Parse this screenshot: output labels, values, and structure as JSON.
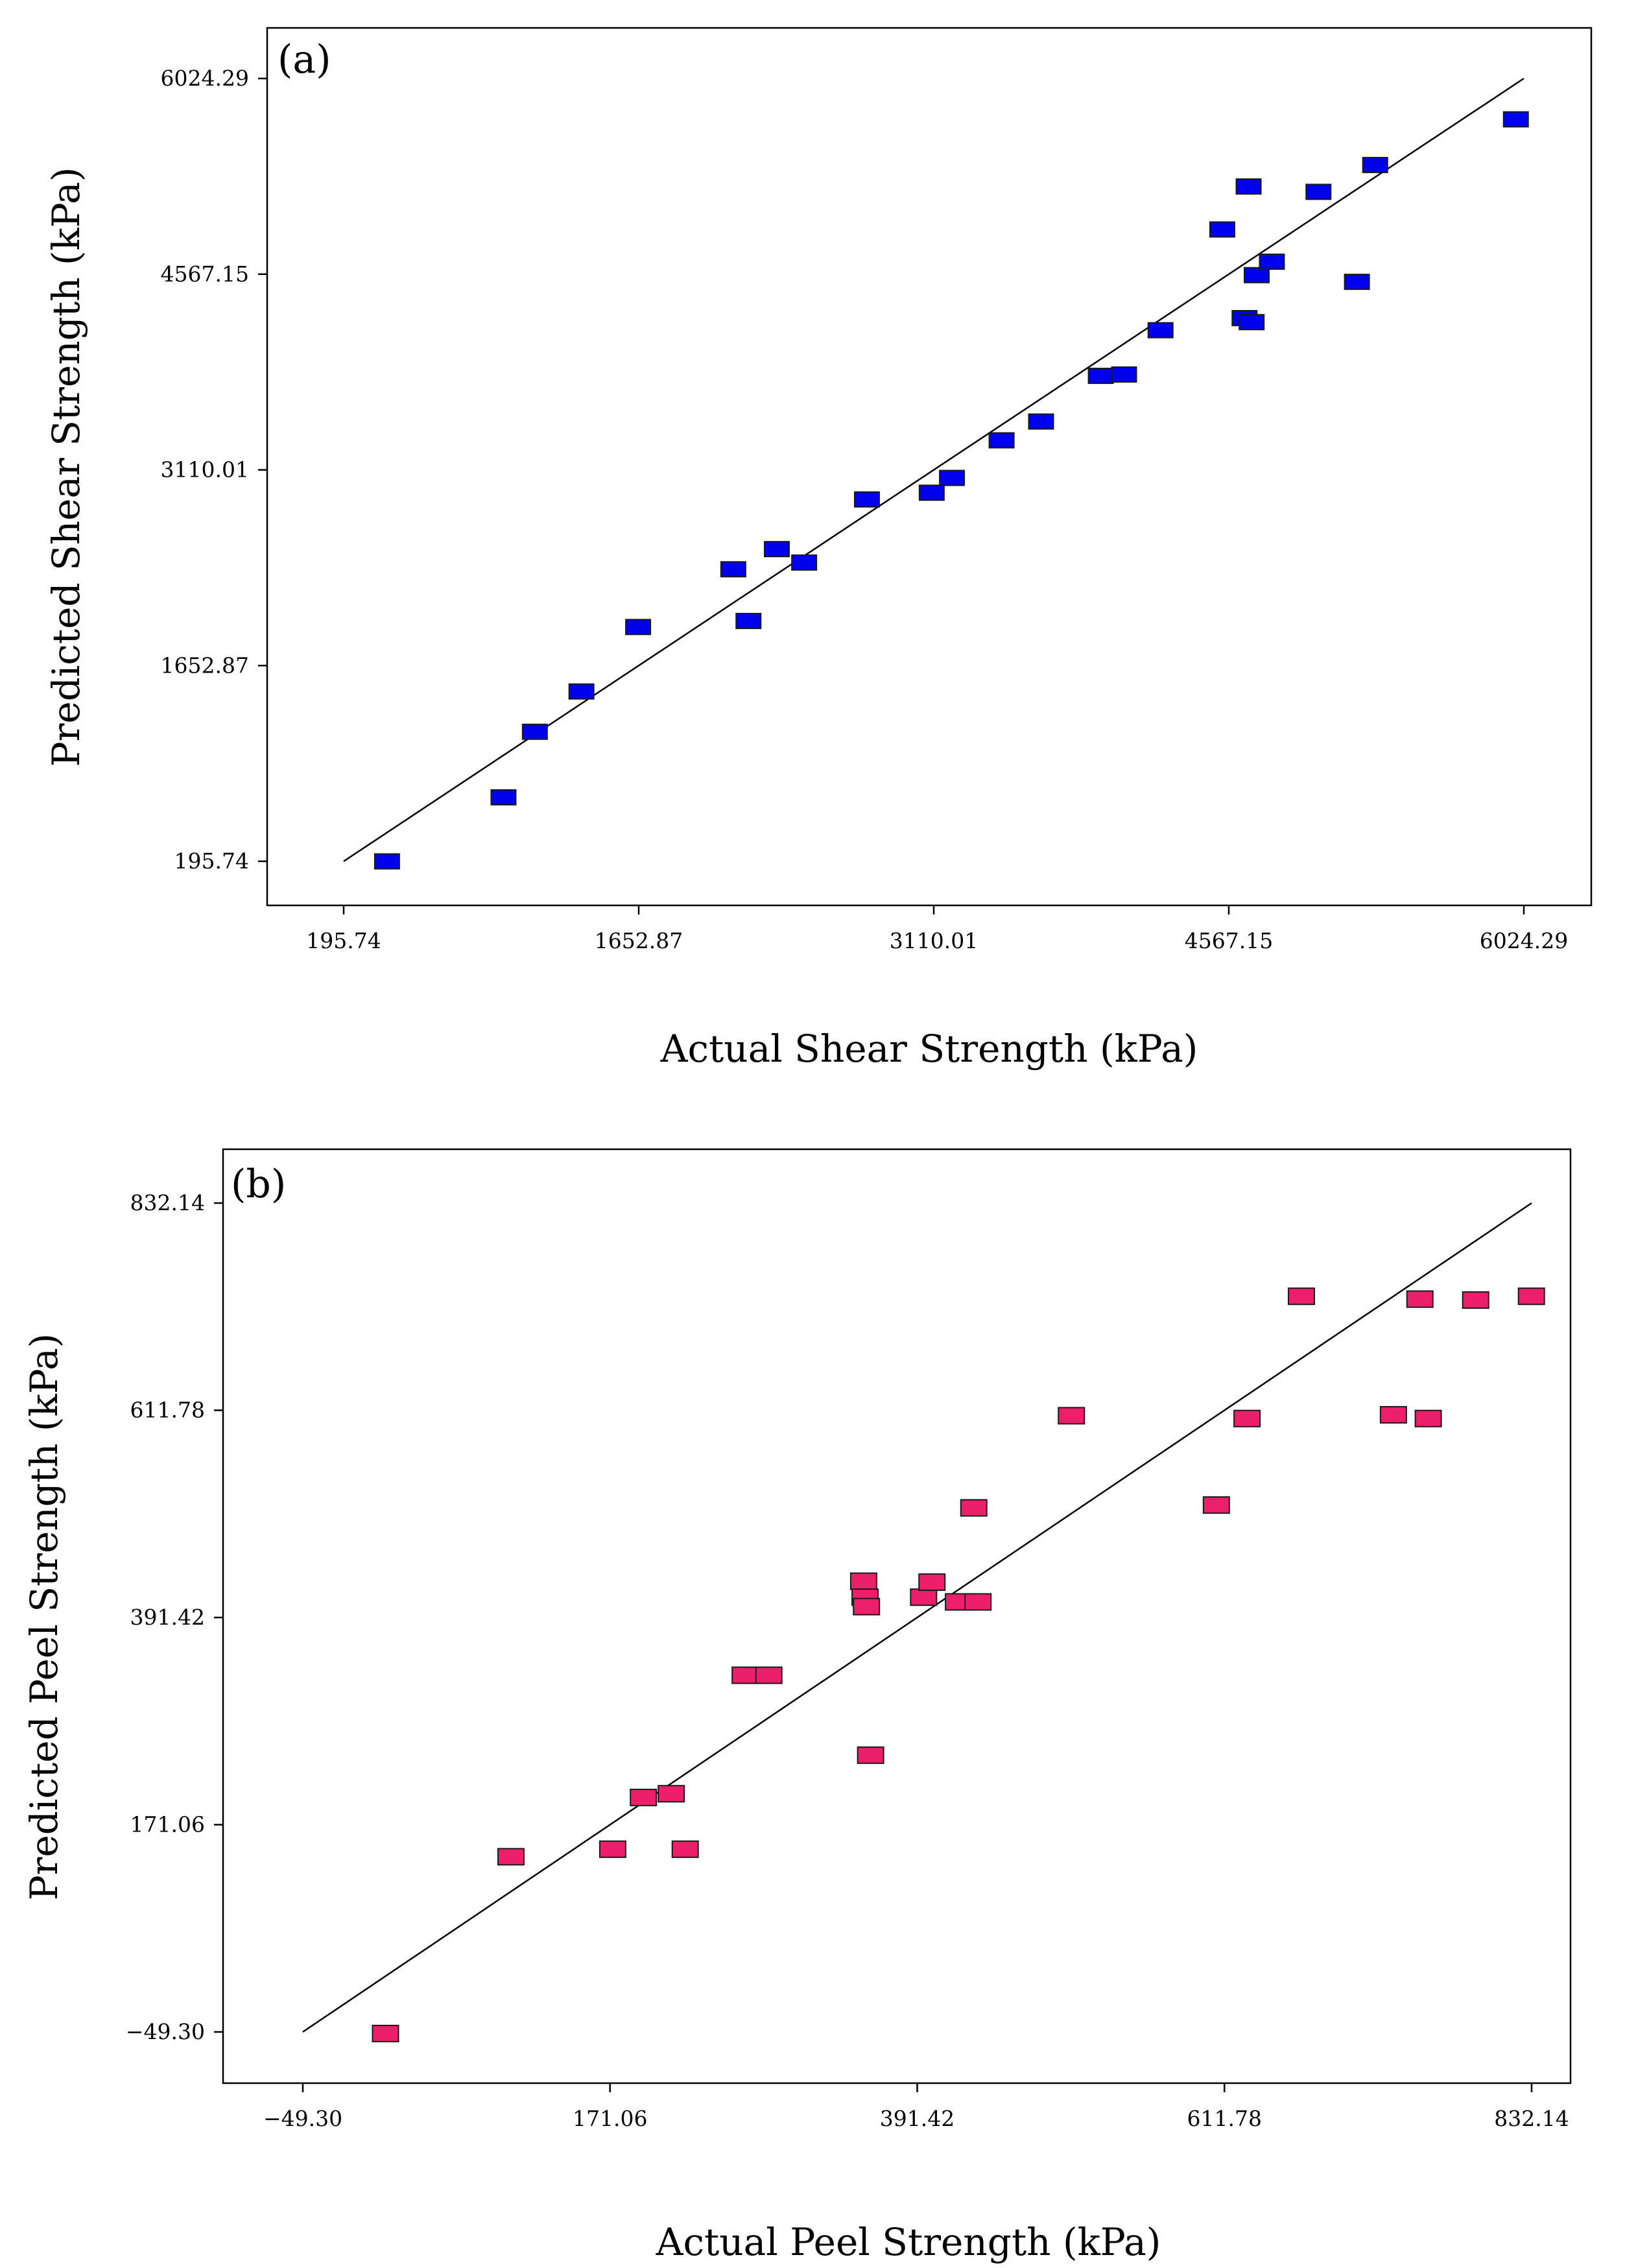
{
  "chart_data": [
    {
      "type": "scatter",
      "panel_label": "(a)",
      "xlabel": "Actual Shear Strength (kPa)",
      "ylabel": "Predicted Shear Strength (kPa)",
      "xlim": [
        195.74,
        6024.29
      ],
      "ylim": [
        195.74,
        6024.29
      ],
      "xticks": [
        "195.74",
        "1652.87",
        "3110.01",
        "4567.15",
        "6024.29"
      ],
      "yticks": [
        "195.74",
        "1652.87",
        "3110.01",
        "4567.15",
        "6024.29"
      ],
      "reference_line": {
        "from": [
          195.74,
          195.74
        ],
        "to": [
          6024.29,
          6024.29
        ]
      },
      "marker_color": "#0000ee",
      "series": [
        {
          "name": "Shear strength",
          "points": [
            [
              410,
              195
            ],
            [
              985,
              672
            ],
            [
              1140,
              1160
            ],
            [
              1370,
              1460
            ],
            [
              1650,
              1940
            ],
            [
              2120,
              2370
            ],
            [
              2195,
              1985
            ],
            [
              2335,
              2520
            ],
            [
              2470,
              2420
            ],
            [
              2780,
              2890
            ],
            [
              3100,
              2940
            ],
            [
              3200,
              3050
            ],
            [
              3445,
              3330
            ],
            [
              3640,
              3470
            ],
            [
              3935,
              3810
            ],
            [
              4050,
              3820
            ],
            [
              4230,
              4150
            ],
            [
              4535,
              4900
            ],
            [
              4645,
              4240
            ],
            [
              4665,
              5220
            ],
            [
              4680,
              4210
            ],
            [
              4705,
              4560
            ],
            [
              4780,
              4660
            ],
            [
              5010,
              5180
            ],
            [
              5200,
              4510
            ],
            [
              5290,
              5380
            ],
            [
              5985,
              5720
            ]
          ]
        }
      ]
    },
    {
      "type": "scatter",
      "panel_label": "(b)",
      "xlabel": "Actual Peel Strength (kPa)",
      "ylabel": "Predicted Peel Strength (kPa)",
      "xlim": [
        -49.3,
        832.14
      ],
      "ylim": [
        -49.3,
        832.14
      ],
      "xticks": [
        "−49.30",
        "171.06",
        "391.42",
        "611.78",
        "832.14"
      ],
      "yticks": [
        "−49.30",
        "171.06",
        "391.42",
        "611.78",
        "832.14"
      ],
      "reference_line": {
        "from": [
          -49.3,
          -49.3
        ],
        "to": [
          832.14,
          832.14
        ]
      },
      "marker_color": "#ee1f6a",
      "series": [
        {
          "name": "Peel strength",
          "points": [
            [
              10,
              -51
            ],
            [
              100,
              137
            ],
            [
              173,
              145
            ],
            [
              195,
              200
            ],
            [
              215,
              204
            ],
            [
              225,
              145
            ],
            [
              268,
              330
            ],
            [
              285,
              330
            ],
            [
              353,
              430
            ],
            [
              354,
              413
            ],
            [
              355,
              403
            ],
            [
              358,
              245
            ],
            [
              396,
              413
            ],
            [
              402,
              429
            ],
            [
              421,
              408
            ],
            [
              432,
              508
            ],
            [
              435,
              408
            ],
            [
              502,
              606
            ],
            [
              606,
              511
            ],
            [
              628,
              603
            ],
            [
              667,
              733
            ],
            [
              733,
              607
            ],
            [
              752,
              730
            ],
            [
              758,
              603
            ],
            [
              792,
              729
            ],
            [
              832,
              733
            ]
          ]
        }
      ]
    }
  ]
}
